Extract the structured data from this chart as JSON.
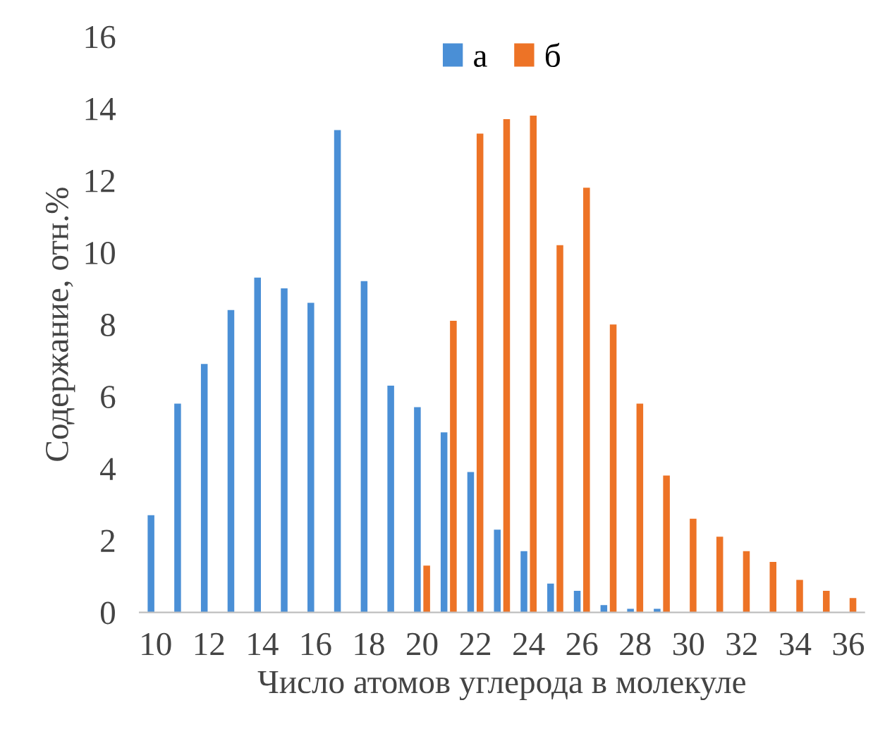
{
  "chart_data": {
    "type": "bar",
    "xlabel": "Число атомов углерода в молекуле",
    "ylabel": "Содержание, отн.%",
    "categories": [
      "10",
      null,
      "12",
      null,
      "14",
      null,
      "16",
      null,
      "18",
      null,
      "20",
      null,
      "22",
      null,
      "24",
      null,
      "26",
      null,
      "28",
      null,
      "30",
      null,
      "32",
      null,
      "34",
      null,
      "36"
    ],
    "series": [
      {
        "name": "а",
        "color": "#4a8fd6",
        "values": [
          2.7,
          5.8,
          6.9,
          8.4,
          9.3,
          9.0,
          8.6,
          13.4,
          9.2,
          6.3,
          5.7,
          5.0,
          3.9,
          2.3,
          1.7,
          0.8,
          0.6,
          0.2,
          0.1,
          0.1,
          0,
          0,
          0,
          0,
          0,
          0,
          0
        ]
      },
      {
        "name": "б",
        "color": "#ed7326",
        "values": [
          0,
          0,
          0,
          0,
          0,
          0,
          0,
          0,
          0,
          0,
          1.3,
          8.1,
          13.3,
          13.7,
          13.8,
          10.2,
          11.8,
          8.0,
          5.8,
          3.8,
          2.6,
          2.1,
          1.7,
          1.4,
          0.9,
          0.6,
          0.4
        ]
      }
    ],
    "ylim": [
      0,
      16
    ],
    "yticks": [
      0,
      2,
      4,
      6,
      8,
      10,
      12,
      14,
      16
    ],
    "grid": false,
    "legend": "top"
  }
}
